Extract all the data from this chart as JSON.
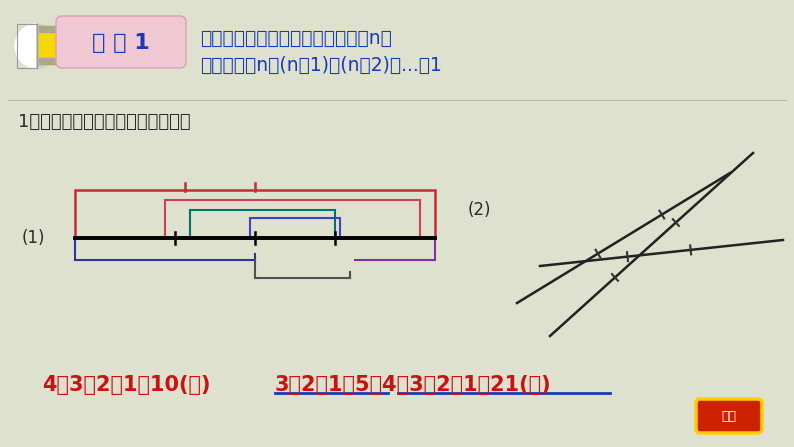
{
  "bg_color": "#dfe1cf",
  "title_text1": "数线段，先数基本线段，若条数是n，",
  "title_text2": "则总条数是n＋(n－1)＋(n－2)＋...＋1",
  "badge_text": "技 巧 1",
  "question_text": "1．下面各图中分别有多少条线段？",
  "label1": "(1)",
  "label2": "(2)",
  "blue_color": "#1a3ab5",
  "red_color": "#cc1111",
  "badge_bg": "#f0c8d4",
  "dark_text": "#2a2a2a",
  "answer1": "4＋3＋2＋1＝10(条)",
  "answer2": "3＋2＋1＋5＋4＋3＋2＋1＝21(条)"
}
